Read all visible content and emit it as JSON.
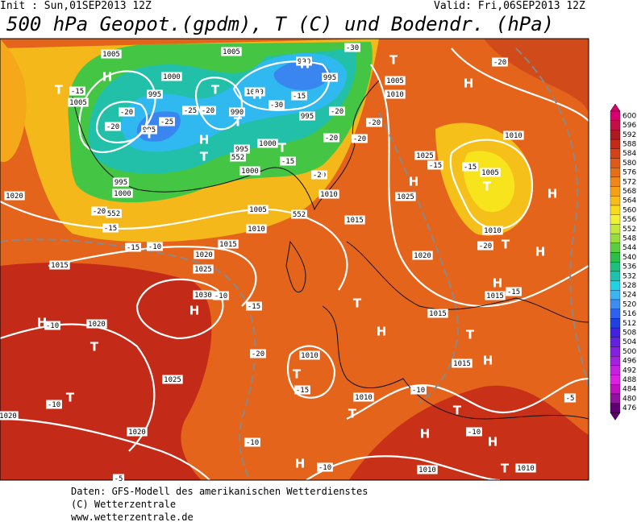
{
  "header": {
    "init": "Init : Sun,01SEP2013 12Z",
    "valid": "Valid: Fri,06SEP2013 12Z",
    "title": "500 hPa Geopot.(gpdm), T (C) und Bodendr. (hPa)"
  },
  "footer": [
    "Daten: GFS-Modell des amerikanischen Wetterdienstes",
    "(C) Wetterzentrale",
    "www.wetterzentrale.de"
  ],
  "colorbar": {
    "ticks": [
      600,
      596,
      592,
      588,
      584,
      580,
      576,
      572,
      568,
      564,
      560,
      556,
      552,
      548,
      544,
      540,
      536,
      532,
      528,
      524,
      520,
      516,
      512,
      508,
      504,
      500,
      496,
      492,
      488,
      484,
      480,
      476
    ],
    "colors": [
      "#d6006e",
      "#c21046",
      "#ae1a22",
      "#c42a18",
      "#d44218",
      "#de5a1a",
      "#e6701a",
      "#ee881a",
      "#f6a01a",
      "#f8bc1a",
      "#f8dc1c",
      "#f2f032",
      "#c6e83a",
      "#98dc40",
      "#5ccc40",
      "#2cbe48",
      "#1ec080",
      "#1ec0b0",
      "#22d2e4",
      "#3cb4f2",
      "#3e8cf0",
      "#2e62ee",
      "#2040e0",
      "#4222e0",
      "#6222e0",
      "#8222e0",
      "#a222e0",
      "#c422e2",
      "#e020e0",
      "#c010c0",
      "#9010a0",
      "#600070"
    ]
  },
  "map": {
    "labels": [
      "H",
      "T",
      "-15",
      "1005",
      "1005",
      "1000",
      "995",
      "-20",
      "-25",
      "-20",
      "995",
      "T",
      "T",
      "-20",
      "-25",
      "990",
      "T",
      "1005",
      "1000",
      "H",
      "-30",
      "-15",
      "990",
      "H",
      "-30",
      "T",
      "995",
      "995",
      "-20",
      "1005",
      "1010",
      "-20",
      "-20",
      "-20",
      "1000",
      "T",
      "H",
      "T",
      "995",
      "552",
      "-15",
      "1000",
      "995",
      "1000",
      "-20",
      "T",
      "1010",
      "1020",
      "-20",
      "552",
      "-15",
      "1005",
      "552",
      "1015",
      "1010",
      "-15",
      "-10",
      "1015",
      "1020",
      "1025",
      "1015",
      "1030",
      "-10",
      "H",
      "-15",
      "H",
      "-10",
      "1020",
      "T",
      "-20",
      "1025",
      "1010",
      "T",
      "-15",
      "T",
      "-10",
      "1020",
      "1020",
      "-10",
      "T",
      "1010",
      "H",
      "T",
      "1025",
      "-15",
      "H",
      "1025",
      "1020",
      "-15",
      "1005",
      "T",
      "1010",
      "-20",
      "H",
      "H",
      "1010",
      "-20",
      "T",
      "H",
      "H",
      "1015",
      "-15",
      "1015",
      "T",
      "1015",
      "H",
      "-10",
      "T",
      "H",
      "-10",
      "H",
      "-5",
      "H",
      "-10",
      "1010",
      "T",
      "1010",
      "-5"
    ]
  }
}
